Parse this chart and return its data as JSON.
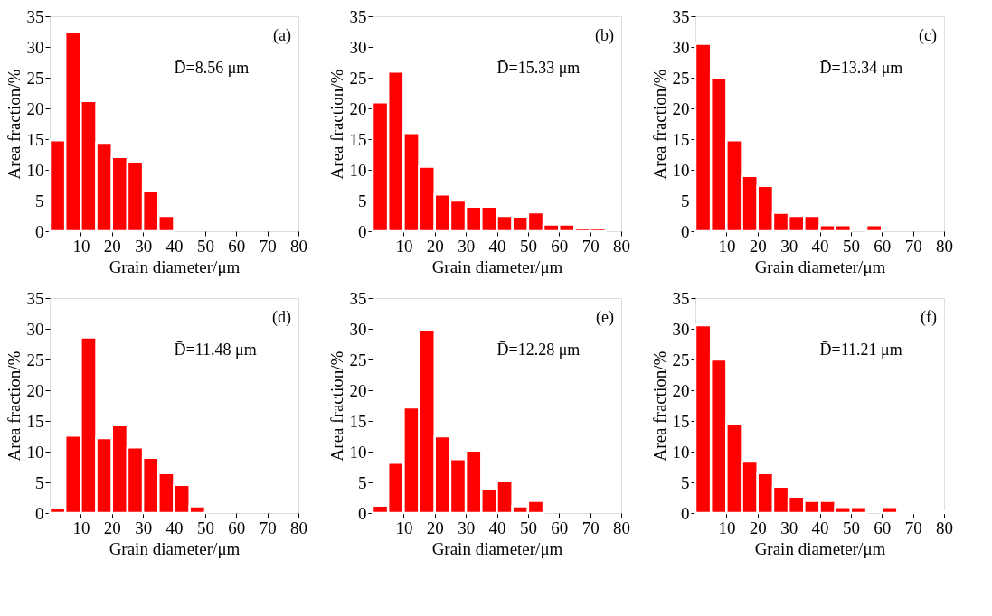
{
  "chart_data": [
    {
      "type": "histogram",
      "bins": [
        0,
        5,
        10,
        15,
        20,
        25,
        30,
        35,
        40,
        45,
        50,
        55,
        60,
        65,
        70,
        75,
        80
      ],
      "values": [
        14.8,
        32.5,
        21.2,
        14.4,
        12.1,
        11.3,
        6.5,
        2.5,
        0,
        0,
        0,
        0,
        0,
        0,
        0,
        0
      ],
      "color": "#ff0000",
      "xlabel": "Grain diameter/μm",
      "ylabel": "Area fraction/%",
      "xlim": [
        0,
        80
      ],
      "ylim": [
        0,
        35
      ],
      "xticks": [
        10,
        20,
        30,
        40,
        50,
        60,
        70,
        80
      ],
      "yticks": [
        0,
        5,
        10,
        15,
        20,
        25,
        30,
        35
      ],
      "annotations": [
        "(a)",
        "D̄=8.56 μm"
      ]
    },
    {
      "type": "histogram",
      "bins": [
        0,
        5,
        10,
        15,
        20,
        25,
        30,
        35,
        40,
        45,
        50,
        55,
        60,
        65,
        70,
        75,
        80
      ],
      "values": [
        21,
        26,
        16,
        10.5,
        6,
        5,
        4,
        4,
        2.5,
        2.4,
        3.1,
        1.1,
        1.1,
        0.6,
        0.6,
        0
      ],
      "color": "#ff0000",
      "xlabel": "Grain diameter/μm",
      "ylabel": "Area fraction/%",
      "xlim": [
        0,
        80
      ],
      "ylim": [
        0,
        35
      ],
      "xticks": [
        10,
        20,
        30,
        40,
        50,
        60,
        70,
        80
      ],
      "yticks": [
        0,
        5,
        10,
        15,
        20,
        25,
        30,
        35
      ],
      "annotations": [
        "(b)",
        "D̄=15.33 μm"
      ]
    },
    {
      "type": "histogram",
      "bins": [
        0,
        5,
        10,
        15,
        20,
        25,
        30,
        35,
        40,
        45,
        50,
        55,
        60,
        65,
        70,
        75,
        80
      ],
      "values": [
        30.5,
        25,
        14.8,
        9,
        7.4,
        3,
        2.5,
        2.5,
        1,
        1,
        0,
        1,
        0,
        0,
        0,
        0
      ],
      "color": "#ff0000",
      "xlabel": "Grain diameter/μm",
      "ylabel": "Area fraction/%",
      "xlim": [
        0,
        80
      ],
      "ylim": [
        0,
        35
      ],
      "xticks": [
        10,
        20,
        30,
        40,
        50,
        60,
        70,
        80
      ],
      "yticks": [
        0,
        5,
        10,
        15,
        20,
        25,
        30,
        35
      ],
      "annotations": [
        "(c)",
        "D̄=13.34 μm"
      ]
    },
    {
      "type": "histogram",
      "bins": [
        0,
        5,
        10,
        15,
        20,
        25,
        30,
        35,
        40,
        45,
        50,
        55,
        60,
        65,
        70,
        75,
        80
      ],
      "values": [
        0.8,
        12.6,
        28.6,
        12.2,
        14.3,
        10.7,
        9,
        6.5,
        4.6,
        1.1,
        0,
        0,
        0,
        0,
        0,
        0
      ],
      "color": "#ff0000",
      "xlabel": "Grain diameter/μm",
      "ylabel": "Area fraction/%",
      "xlim": [
        0,
        80
      ],
      "ylim": [
        0,
        35
      ],
      "xticks": [
        10,
        20,
        30,
        40,
        50,
        60,
        70,
        80
      ],
      "yticks": [
        0,
        5,
        10,
        15,
        20,
        25,
        30,
        35
      ],
      "annotations": [
        "(d)",
        "D̄=11.48 μm"
      ]
    },
    {
      "type": "histogram",
      "bins": [
        0,
        5,
        10,
        15,
        20,
        25,
        30,
        35,
        40,
        45,
        50,
        55,
        60,
        65,
        70,
        75,
        80
      ],
      "values": [
        1.2,
        8.2,
        17.2,
        29.8,
        12.5,
        8.8,
        10.2,
        3.9,
        5.2,
        1.1,
        2,
        0,
        0,
        0,
        0,
        0
      ],
      "color": "#ff0000",
      "xlabel": "Grain diameter/μm",
      "ylabel": "Area fraction/%",
      "xlim": [
        0,
        80
      ],
      "ylim": [
        0,
        35
      ],
      "xticks": [
        10,
        20,
        30,
        40,
        50,
        60,
        70,
        80
      ],
      "yticks": [
        0,
        5,
        10,
        15,
        20,
        25,
        30,
        35
      ],
      "annotations": [
        "(e)",
        "D̄=12.28 μm"
      ]
    },
    {
      "type": "histogram",
      "bins": [
        0,
        5,
        10,
        15,
        20,
        25,
        30,
        35,
        40,
        45,
        50,
        55,
        60,
        65,
        70,
        75,
        80
      ],
      "values": [
        30.6,
        25,
        14.6,
        8.4,
        6.5,
        4.3,
        2.7,
        2,
        2,
        1,
        1,
        0,
        1,
        0.3,
        0.3,
        0.3
      ],
      "color": "#ff0000",
      "xlabel": "Grain diameter/μm",
      "ylabel": "Area fraction/%",
      "xlim": [
        0,
        80
      ],
      "ylim": [
        0,
        35
      ],
      "xticks": [
        10,
        20,
        30,
        40,
        50,
        60,
        70,
        80
      ],
      "yticks": [
        0,
        5,
        10,
        15,
        20,
        25,
        30,
        35
      ],
      "annotations": [
        "(f)",
        "D̄=11.21 μm"
      ]
    }
  ]
}
